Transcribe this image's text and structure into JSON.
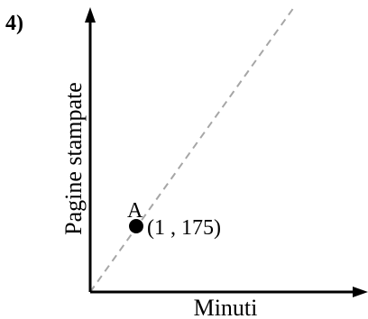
{
  "problem_number": "4)",
  "axes": {
    "x_label": "Minuti",
    "y_label": "Pagine stampate"
  },
  "point": {
    "label": "A",
    "coordinates": "(1 , 175)",
    "x": 1,
    "y": 175
  },
  "colors": {
    "axis": "#000000",
    "dashed_line": "#a6a6a6",
    "point": "#000000"
  }
}
